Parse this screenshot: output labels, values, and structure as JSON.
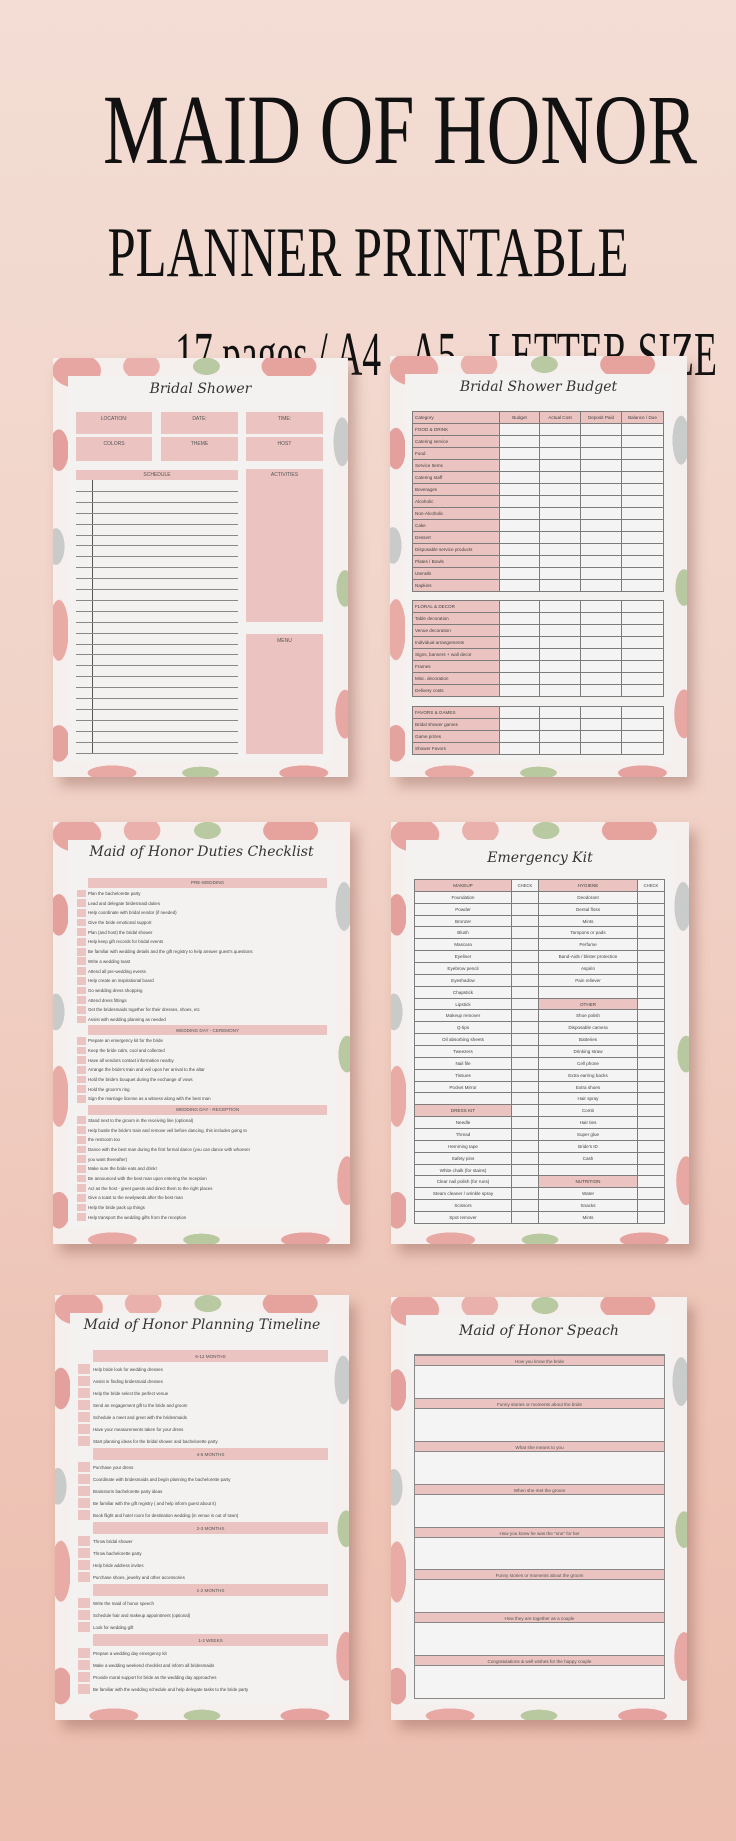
{
  "header": {
    "title": "MAID OF HONOR",
    "subtitle": "PLANNER PRINTABLE",
    "details": "17 pages / A4 - A5 - LETTER SIZE"
  },
  "colors": {
    "background": "#f1d3c8",
    "accent_pink": "#ebc3c0",
    "panel": "#f3f2f1"
  },
  "bridal_shower": {
    "title": "Bridal Shower",
    "fields": [
      "LOCATION:",
      "DATE:",
      "TIME:",
      "COLORS",
      "THEME",
      "HOST"
    ],
    "schedule": "SCHEDULE",
    "activities": "ACTIVITIES",
    "menu": "MENU"
  },
  "budget": {
    "title": "Bridal Shower Budget",
    "columns": [
      "Category",
      "Budget",
      "Actual Cost",
      "Deposit Paid",
      "Balance / Due"
    ],
    "sections": [
      [
        "FOOD & DRINK",
        "Catering service",
        "Food",
        "Service Items",
        "Catering staff",
        "Beverages",
        "Alcoholic",
        "Non-Alcoholic",
        "Cake",
        "Dessert",
        "Disposable service products",
        "Plates / Bowls",
        "Utensils",
        "Napkins"
      ],
      [
        "FLORAL & DECOR",
        "Table decoration",
        "Venue decoration",
        "Individual arrangements",
        "Signs, banners + wall decor",
        "Frames",
        "Misc. decoration",
        "Delivery costs"
      ],
      [
        "FAVORS & GAMES",
        "Bridal shower games",
        "Game prizes",
        "Shower Favors"
      ]
    ]
  },
  "duties": {
    "title": "Maid of Honor Duties Checklist",
    "sections": [
      {
        "heading": "PRE-WEDDING",
        "items": [
          "Plan the bachelorette party",
          "Lead and delegate bridesmaid duties",
          "Help coordinate with bridal vendor (if needed)",
          "Give the bride emotional support",
          "Plan (and host) the bridal shower",
          "Help keep gift records for bridal events",
          "Be familiar with wedding details and the gift registry to help answer guest's questions",
          "Write a wedding toast",
          "Attend all pre-wedding events",
          "Help create an inspirational board",
          "Go wedding dress shopping",
          "Attend dress fittings",
          "Get the bridesmaids together for their dresses, shoes, etc",
          "Assist with wedding planning as needed"
        ]
      },
      {
        "heading": "WEDDING DAY - CEREMONY",
        "items": [
          "Prepare an emergency kit for the bride",
          "Keep the bride calm, cool and collected",
          "Have all vendors contact information nearby",
          "Arrange the bride's train and veil upon her arrival to the altar",
          "Hold the bride's bouquet during the exchange of vows",
          "Hold the groom's ring",
          "Sign the marriage license as a witness along with the best man"
        ]
      },
      {
        "heading": "WEDDING DAY - RECEPTION",
        "items": [
          "Stand next to the groom in the receiving line (optional)",
          "Help bustle the bride's train and remove veil before dancing, this includes going to",
          "the restroom too",
          "Dance with the best man during the first formal dance (you can dance with whoever",
          "you want thereafter)",
          "Make sure the bride eats and drink!",
          "Be announced with the best man upon entering the reception",
          "Act as the host - greet guests and direct them to the right places",
          "Give a toast to the newlyweds after the best man",
          "Help the bride pack up things",
          "Help transport the wedding gifts from the reception"
        ]
      }
    ]
  },
  "emergency": {
    "title": "Emergency Kit",
    "check_label": "CHECK",
    "left": [
      {
        "label": "MAKEUP",
        "header": true
      },
      {
        "label": "Foundation"
      },
      {
        "label": "Powder"
      },
      {
        "label": "Bronzer"
      },
      {
        "label": "Blush"
      },
      {
        "label": "Mascara"
      },
      {
        "label": "Eyeliner"
      },
      {
        "label": "Eyebrow pencil"
      },
      {
        "label": "Eyeshadow"
      },
      {
        "label": "Chapstick"
      },
      {
        "label": "Lipstick"
      },
      {
        "label": "Makeup remover"
      },
      {
        "label": "Q-tips"
      },
      {
        "label": "Oil absorbing sheets"
      },
      {
        "label": "Tweezers"
      },
      {
        "label": "Nail file"
      },
      {
        "label": "Tissues"
      },
      {
        "label": "Pocket Mirror"
      },
      {
        "label": ""
      },
      {
        "label": "DRESS KIT",
        "header": true
      },
      {
        "label": "Needle"
      },
      {
        "label": "Thread"
      },
      {
        "label": "Hemming tape"
      },
      {
        "label": "Safety pins"
      },
      {
        "label": "White chalk (for stains)"
      },
      {
        "label": "Clear nail polish (for runs)"
      },
      {
        "label": "Steam cleaner / wrinkle spray"
      },
      {
        "label": "Scissors"
      },
      {
        "label": "Spot remover"
      }
    ],
    "right": [
      {
        "label": "HYGIENE",
        "header": true
      },
      {
        "label": "Deodorant"
      },
      {
        "label": "Dental floss"
      },
      {
        "label": "Mints"
      },
      {
        "label": "Tampons or pads"
      },
      {
        "label": "Perfume"
      },
      {
        "label": "Band-Aids / blister protection"
      },
      {
        "label": "Aspirin"
      },
      {
        "label": "Pain reliever"
      },
      {
        "label": ""
      },
      {
        "label": "OTHER",
        "header": true
      },
      {
        "label": "Shoe polish"
      },
      {
        "label": "Disposable camera"
      },
      {
        "label": "Batteries"
      },
      {
        "label": "Drinking straw"
      },
      {
        "label": "Cell phone"
      },
      {
        "label": "Extra earring backs"
      },
      {
        "label": "Extra shoes"
      },
      {
        "label": "Hair spray"
      },
      {
        "label": "Comb"
      },
      {
        "label": "Hair ties"
      },
      {
        "label": "Super glue"
      },
      {
        "label": "Bride's ID"
      },
      {
        "label": "Cash"
      },
      {
        "label": ""
      },
      {
        "label": "NUTRITION",
        "header": true
      },
      {
        "label": "Water"
      },
      {
        "label": "Snacks"
      },
      {
        "label": "Mints"
      }
    ]
  },
  "timeline": {
    "title": "Maid of Honor Planning Timeline",
    "sections": [
      {
        "heading": "6-12 MONTHS",
        "items": [
          "Help bride look for wedding dresses",
          "Assist in finding bridesmaid dresses",
          "Help the bride select the perfect venue",
          "Send an engagement gift to the bride and groom",
          "Schedule a meet and greet with the bridesmaids",
          "Have your measurements taken for your dress",
          "Start planning ideas for the bridal shower and bachelorette party"
        ]
      },
      {
        "heading": "4-6 MONTHS",
        "items": [
          "Purchase your dress",
          "Coordinate with bridesmaids and begin planning the bachelorette party",
          "Brainstorm bachelorette party ideas",
          "Be familiar with the gift registry ( and help inform guest about it)",
          "Book flight and hotel room for destination wedding (in venue is out of town)"
        ]
      },
      {
        "heading": "2-3 MONTHS",
        "items": [
          "Throw bridal shower",
          "Throw bachelorette party",
          "Help bride address invites",
          "Purchase shoes, jewelry and other accessories"
        ]
      },
      {
        "heading": "1-2 MONTHS",
        "items": [
          "Write the maid of honor speech",
          "Schedule hair and makeup appointment (optional)",
          "Look for wedding gift"
        ]
      },
      {
        "heading": "1-2 WEEKS",
        "items": [
          "Prepare a wedding day emergency kit",
          "Make a wedding weekend checklist and inform all bridesmaids",
          "Provide moral support for bride as the wedding day approaches",
          "Be familiar with the wedding schedule and help delegate tasks to the bride party"
        ]
      }
    ]
  },
  "speech": {
    "title": "Maid of Honor Speach",
    "prompts": [
      "How you know the bride",
      "Funny stories or moments about the bride",
      "What she means to you",
      "When she met the groom",
      "How you knew he was the \"one\" for her",
      "Funny stories or moments about the groom",
      "How they are together as a couple",
      "Congratulations & well wishes for the happy couple"
    ]
  }
}
